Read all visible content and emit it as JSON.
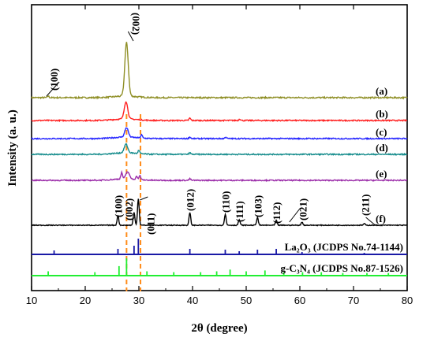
{
  "chart_data": {
    "type": "line",
    "xlabel": "2θ (degree)",
    "ylabel": "Intensity (a. u.)",
    "xlim": [
      10,
      80
    ],
    "xticks": [
      "10",
      "20",
      "30",
      "40",
      "50",
      "60",
      "70",
      "80"
    ],
    "grid": false,
    "series": [
      {
        "label": "(a)",
        "color": "#8f8f26",
        "peaks": [
          [
            13.1,
            2
          ],
          [
            27.7,
            68
          ]
        ],
        "noise": 1.8
      },
      {
        "label": "(b)",
        "color": "#ff1f1f",
        "peaks": [
          [
            27.6,
            22
          ],
          [
            39.5,
            3
          ],
          [
            48.8,
            2
          ]
        ],
        "noise": 1.5
      },
      {
        "label": "(c)",
        "color": "#2424ff",
        "peaks": [
          [
            27.7,
            12
          ],
          [
            30.5,
            4
          ],
          [
            39.5,
            2
          ],
          [
            46.2,
            2
          ]
        ],
        "noise": 1.5
      },
      {
        "label": "(d)",
        "color": "#138b8b",
        "peaks": [
          [
            27.6,
            11
          ],
          [
            30.0,
            4
          ],
          [
            39.5,
            2
          ]
        ],
        "noise": 1.5
      },
      {
        "label": "(e)",
        "color": "#9a2aa8",
        "peaks": [
          [
            26.8,
            8
          ],
          [
            27.9,
            9
          ],
          [
            29.6,
            4
          ],
          [
            30.2,
            5
          ],
          [
            39.5,
            2
          ]
        ],
        "noise": 1.4
      },
      {
        "label": "(f)",
        "color": "#000000",
        "peaks": [
          [
            26.1,
            12
          ],
          [
            29.1,
            16
          ],
          [
            29.9,
            34
          ],
          [
            39.5,
            16
          ],
          [
            46.1,
            14
          ],
          [
            48.7,
            7
          ],
          [
            52.1,
            10
          ],
          [
            55.6,
            6
          ],
          [
            60.4,
            4
          ],
          [
            72.0,
            2
          ]
        ],
        "noise": 1.0
      }
    ],
    "peak_labels_curve_a": [
      {
        "x": 13.1,
        "text": "(100)"
      },
      {
        "x": 27.7,
        "text": "(002)"
      }
    ],
    "peak_labels_curve_f": [
      {
        "x": 26.1,
        "text": "(100)"
      },
      {
        "x": 29.1,
        "text": "(002)"
      },
      {
        "x": 29.9,
        "text": "(011)"
      },
      {
        "x": 39.5,
        "text": "(012)"
      },
      {
        "x": 46.1,
        "text": "(110)"
      },
      {
        "x": 48.7,
        "text": "(111)"
      },
      {
        "x": 52.1,
        "text": "(103)"
      },
      {
        "x": 55.6,
        "text": "(112)"
      },
      {
        "x": 60.4,
        "text": "(021)"
      },
      {
        "x": 72.0,
        "text": "(211)"
      }
    ],
    "reference_patterns": [
      {
        "label": "La₂O₃ (JCDPS No.74-1144)",
        "color": "#1a1aa6",
        "sticks": [
          [
            14.2,
            0.25
          ],
          [
            26.1,
            0.35
          ],
          [
            29.1,
            0.55
          ],
          [
            29.9,
            1.0
          ],
          [
            39.5,
            0.35
          ],
          [
            46.1,
            0.3
          ],
          [
            48.7,
            0.2
          ],
          [
            52.1,
            0.3
          ],
          [
            55.6,
            0.35
          ],
          [
            60.4,
            0.15
          ],
          [
            72.0,
            0.1
          ]
        ]
      },
      {
        "label": "g-C₃N₄ (JCDPS No.87-1526)",
        "color": "#22ee33",
        "sticks": [
          [
            13.1,
            0.25
          ],
          [
            21.8,
            0.2
          ],
          [
            26.3,
            0.55
          ],
          [
            27.7,
            1.0
          ],
          [
            31.5,
            0.25
          ],
          [
            36.5,
            0.2
          ],
          [
            41.5,
            0.2
          ],
          [
            44.5,
            0.25
          ],
          [
            47.0,
            0.35
          ],
          [
            50.0,
            0.25
          ],
          [
            53.5,
            0.3
          ],
          [
            57.0,
            0.2
          ],
          [
            60.5,
            0.2
          ],
          [
            64.0,
            0.2
          ],
          [
            68.0,
            0.15
          ],
          [
            72.5,
            0.15
          ],
          [
            76.5,
            0.15
          ]
        ]
      }
    ],
    "reference_lines": [
      27.7,
      30.3
    ]
  }
}
